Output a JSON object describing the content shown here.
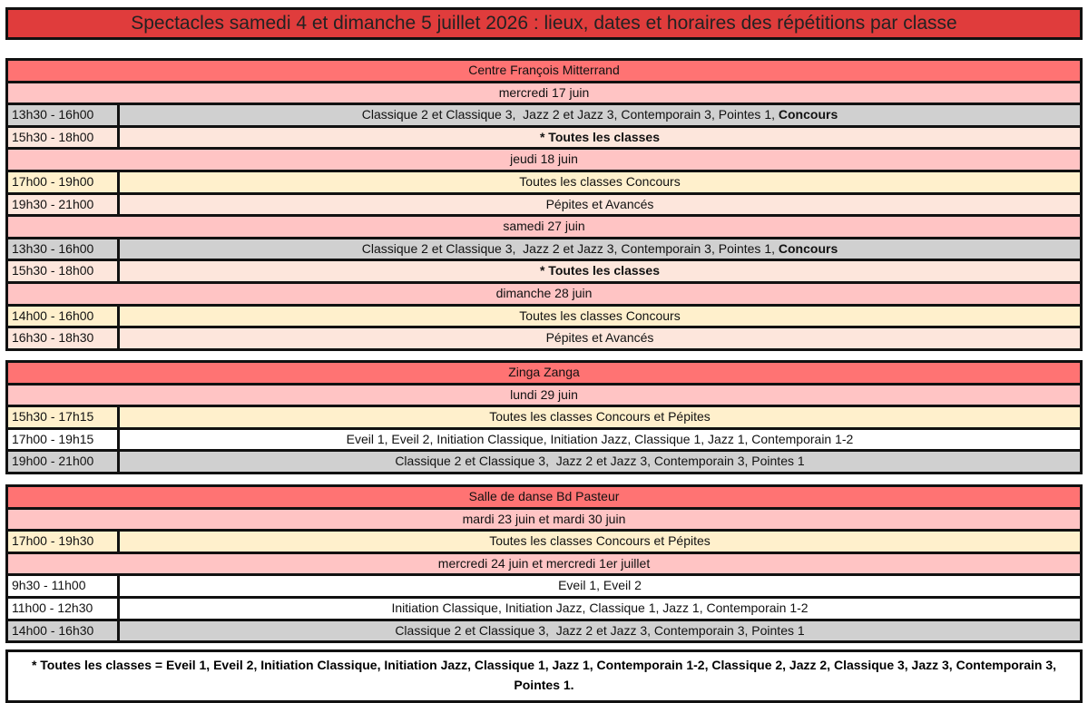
{
  "title": "Spectacles samedi 4 et dimanche 5 juillet 2026 : lieux, dates et horaires des répétitions par classe",
  "colors": {
    "title": "#e03c3c",
    "venue": "#ff7373",
    "day": "#ffc4c4",
    "gray": "#d0d0d0",
    "peach": "#fde6dc",
    "yellow": "#fff0cc",
    "white": "#ffffff"
  },
  "sections": [
    {
      "rows": [
        {
          "type": "venue",
          "text": "Centre François Mitterrand"
        },
        {
          "type": "day",
          "text": "mercredi 17 juin"
        },
        {
          "type": "slot",
          "time": "13h30 - 16h00",
          "color": "gray",
          "parts": [
            {
              "t": "Classique 2 et Classique 3,  Jazz 2 et Jazz 3, Contemporain 3, Pointes 1, "
            },
            {
              "t": "Concours",
              "b": true
            }
          ]
        },
        {
          "type": "slot",
          "time": "15h30 - 18h00",
          "color": "peach",
          "parts": [
            {
              "t": "* Toutes les classes",
              "b": true
            }
          ]
        },
        {
          "type": "day",
          "text": "jeudi 18 juin"
        },
        {
          "type": "slot",
          "time": "17h00 - 19h00",
          "color": "yellow",
          "parts": [
            {
              "t": "Toutes les classes Concours"
            }
          ]
        },
        {
          "type": "slot",
          "time": "19h30 - 21h00",
          "color": "peach",
          "parts": [
            {
              "t": "Pépites et Avancés"
            }
          ]
        },
        {
          "type": "day",
          "text": "samedi 27 juin"
        },
        {
          "type": "slot",
          "time": "13h30 - 16h00",
          "color": "gray",
          "parts": [
            {
              "t": "Classique 2 et Classique 3,  Jazz 2 et Jazz 3, Contemporain 3, Pointes 1, "
            },
            {
              "t": "Concours",
              "b": true
            }
          ]
        },
        {
          "type": "slot",
          "time": "15h30 - 18h00",
          "color": "peach",
          "parts": [
            {
              "t": "* Toutes les classes",
              "b": true
            }
          ]
        },
        {
          "type": "day",
          "text": "dimanche 28 juin"
        },
        {
          "type": "slot",
          "time": "14h00 - 16h00",
          "color": "yellow",
          "parts": [
            {
              "t": "Toutes les classes Concours"
            }
          ]
        },
        {
          "type": "slot",
          "time": "16h30 - 18h30",
          "color": "peach",
          "parts": [
            {
              "t": "Pépites et Avancés"
            }
          ]
        }
      ]
    },
    {
      "rows": [
        {
          "type": "venue",
          "text": "Zinga Zanga"
        },
        {
          "type": "day",
          "text": "lundi 29 juin"
        },
        {
          "type": "slot",
          "time": "15h30 - 17h15",
          "color": "yellow",
          "parts": [
            {
              "t": "Toutes les classes Concours et Pépites"
            }
          ]
        },
        {
          "type": "slot",
          "time": "17h00 - 19h15",
          "color": "white",
          "parts": [
            {
              "t": "Eveil 1, Eveil 2, Initiation Classique, Initiation Jazz, Classique 1, Jazz 1, Contemporain 1-2"
            }
          ]
        },
        {
          "type": "slot",
          "time": "19h00 - 21h00",
          "color": "gray",
          "parts": [
            {
              "t": "Classique 2 et Classique 3,  Jazz 2 et Jazz 3, Contemporain 3, Pointes 1"
            }
          ]
        }
      ]
    },
    {
      "rows": [
        {
          "type": "venue",
          "text": "Salle de danse Bd Pasteur"
        },
        {
          "type": "day",
          "text": "mardi 23 juin et mardi 30 juin"
        },
        {
          "type": "slot",
          "time": "17h00 - 19h30",
          "color": "yellow",
          "parts": [
            {
              "t": "Toutes les classes Concours et Pépites"
            }
          ]
        },
        {
          "type": "day",
          "text": "mercredi 24 juin et mercredi 1er juillet"
        },
        {
          "type": "slot",
          "time": "9h30 - 11h00",
          "color": "white",
          "parts": [
            {
              "t": "Eveil 1, Eveil 2"
            }
          ]
        },
        {
          "type": "slot",
          "time": "11h00 - 12h30",
          "color": "white",
          "parts": [
            {
              "t": "Initiation Classique, Initiation Jazz, Classique 1, Jazz 1, Contemporain 1-2"
            }
          ]
        },
        {
          "type": "slot",
          "time": "14h00 - 16h30",
          "color": "gray",
          "parts": [
            {
              "t": "Classique 2 et Classique 3,  Jazz 2 et Jazz 3, Contemporain 3, Pointes 1"
            }
          ]
        }
      ]
    }
  ],
  "footnote": "* Toutes les classes = Eveil 1, Eveil 2, Initiation Classique, Initiation Jazz, Classique 1, Jazz 1, Contemporain 1-2, Classique 2, Jazz 2, Classique 3, Jazz 3, Contemporain 3, Pointes 1."
}
